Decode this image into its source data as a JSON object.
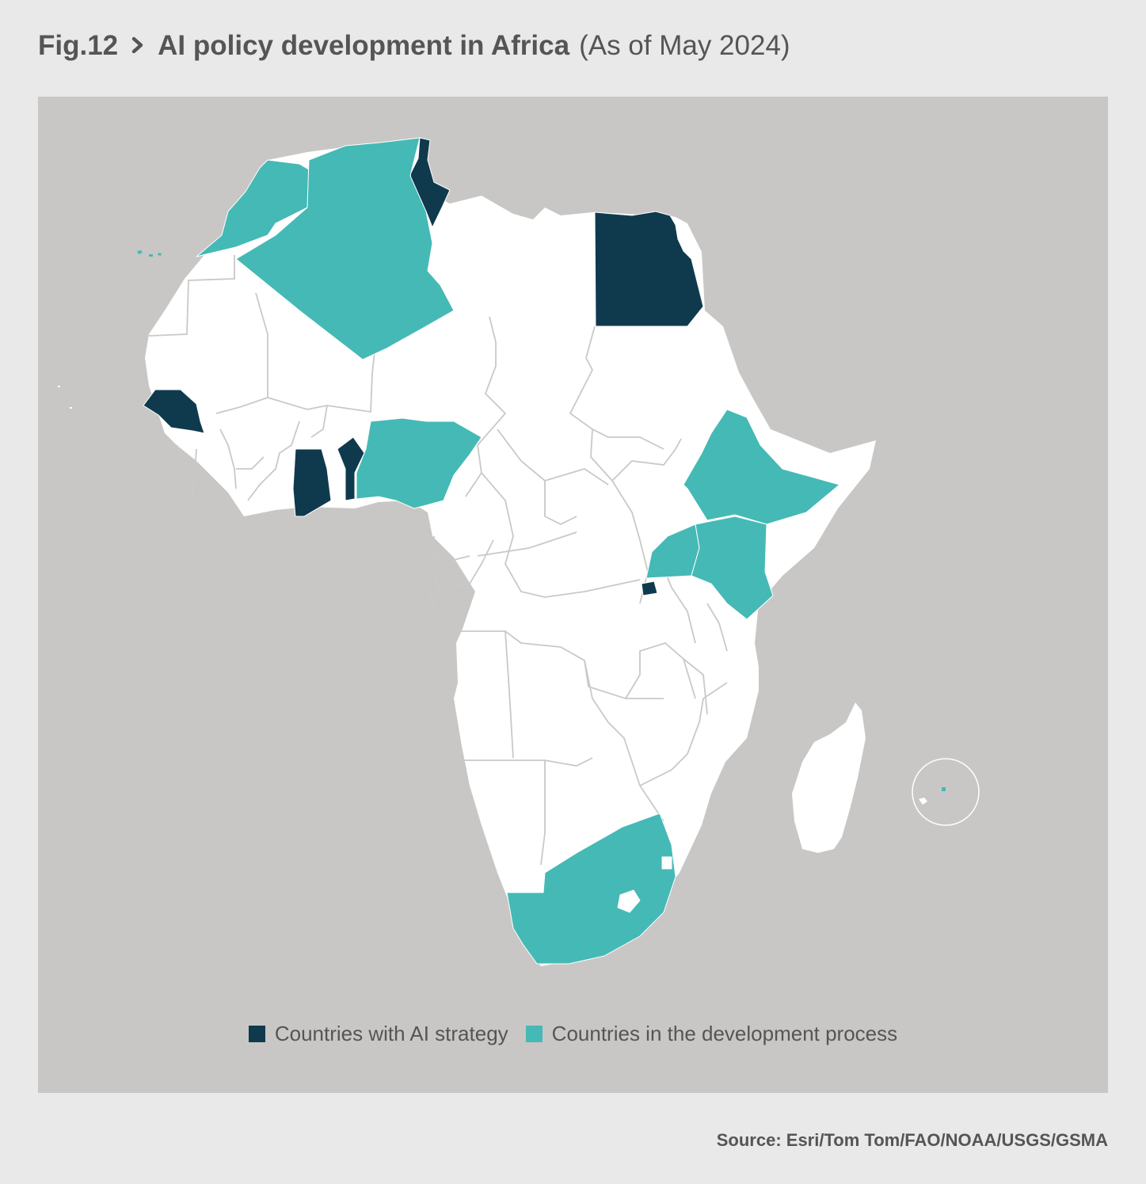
{
  "header": {
    "fig_label": "Fig.12",
    "title": "AI policy development in Africa",
    "subtitle": "(As of May 2024)"
  },
  "map": {
    "colors": {
      "background": "#c8c7c5",
      "land": "#ffffff",
      "border": "#c9c9c9",
      "ai_strategy": "#0f3a4e",
      "development": "#45b9b5"
    },
    "ai_strategy_countries": [
      "Tunisia",
      "Egypt",
      "Senegal",
      "Ghana",
      "Benin",
      "Rwanda",
      "Mauritius"
    ],
    "development_countries": [
      "Morocco",
      "Algeria",
      "Nigeria",
      "Ethiopia",
      "Uganda",
      "Kenya",
      "South Africa"
    ]
  },
  "legend": {
    "items": [
      {
        "label": "Countries with AI strategy",
        "color": "#0f3a4e"
      },
      {
        "label": "Countries in the development process",
        "color": "#45b9b5"
      }
    ]
  },
  "source": "Source: Esri/Tom Tom/FAO/NOAA/USGS/GSMA"
}
